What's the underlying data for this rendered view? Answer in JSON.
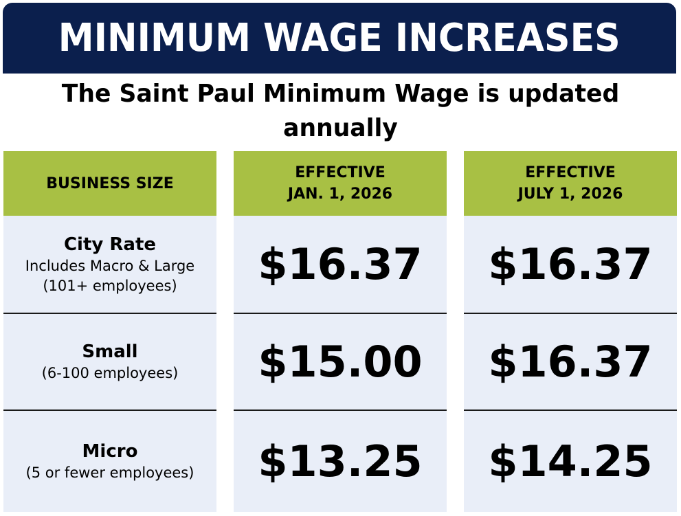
{
  "header": {
    "title": "MINIMUM WAGE INCREASES"
  },
  "subtitle": "The Saint Paul Minimum Wage is updated annually",
  "table": {
    "columns": [
      {
        "lines": [
          "BUSINESS SIZE"
        ]
      },
      {
        "lines": [
          "EFFECTIVE",
          "JAN. 1, 2026"
        ]
      },
      {
        "lines": [
          "EFFECTIVE",
          "JULY 1, 2026"
        ]
      }
    ],
    "rows": [
      {
        "title": "City Rate",
        "sub": [
          "Includes Macro & Large",
          "(101+ employees)"
        ],
        "jan": "$16.37",
        "july": "$16.37"
      },
      {
        "title": "Small",
        "sub": [
          "(6-100 employees)"
        ],
        "jan": "$15.00",
        "july": "$16.37"
      },
      {
        "title": "Micro",
        "sub": [
          "(5 or fewer employees)"
        ],
        "jan": "$13.25",
        "july": "$14.25"
      }
    ]
  },
  "colors": {
    "banner": "#0b1f4d",
    "header_green": "#a8c044",
    "cell_bg": "#e9eef8"
  }
}
